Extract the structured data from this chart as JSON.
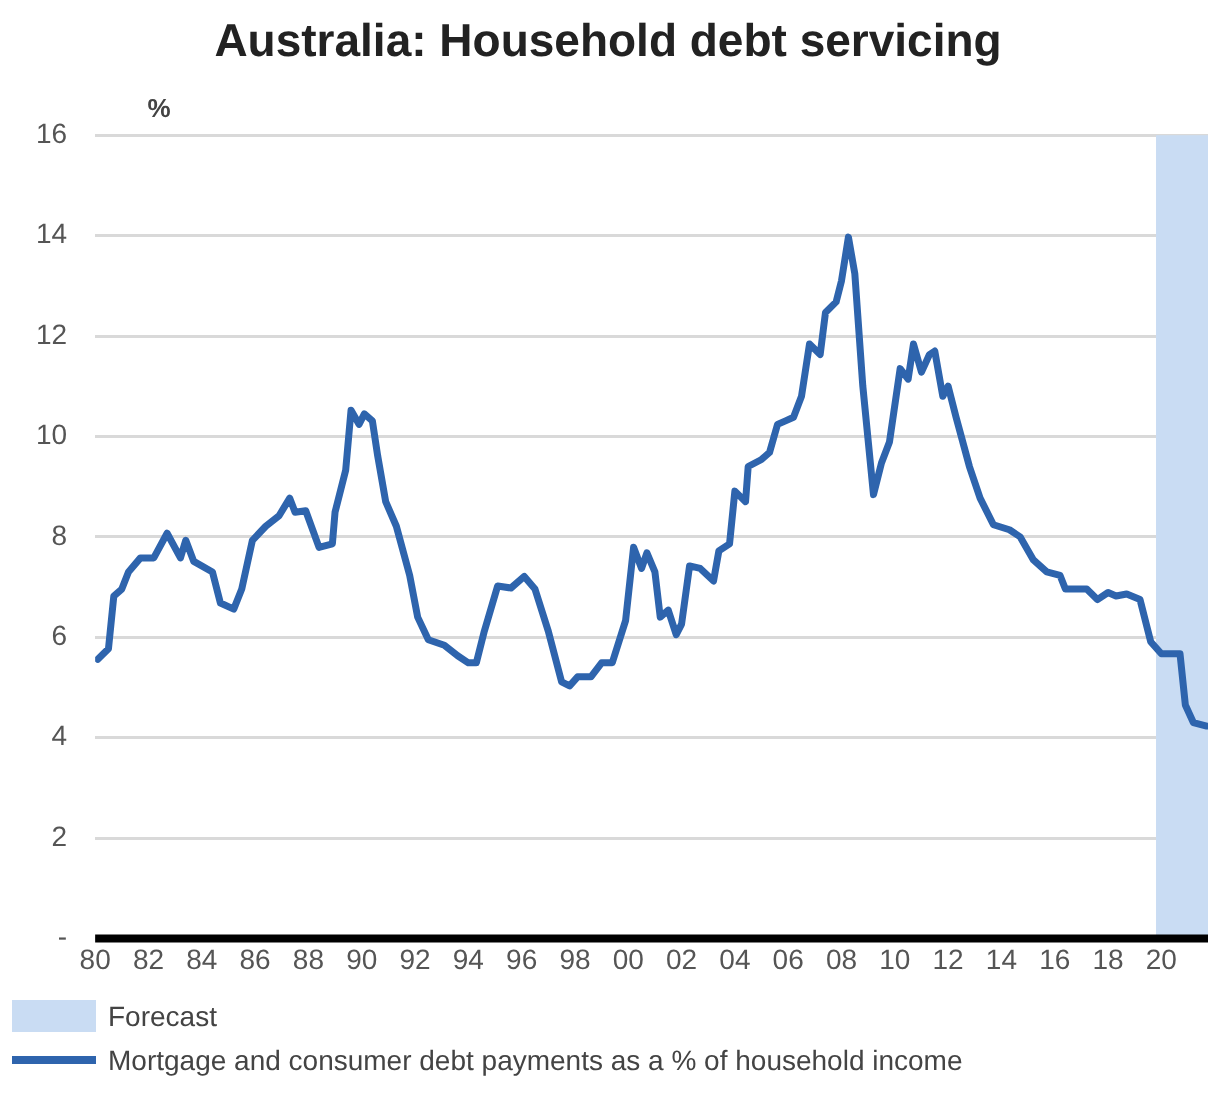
{
  "chart_data": {
    "type": "line",
    "title": "Australia: Household debt servicing",
    "ylabel": "%",
    "x": [
      1980.1,
      1980.5,
      1980.7,
      1981.0,
      1981.25,
      1981.7,
      1982.2,
      1982.7,
      1983.2,
      1983.4,
      1983.7,
      1984.4,
      1984.7,
      1985.2,
      1985.5,
      1985.9,
      1986.4,
      1986.9,
      1987.3,
      1987.5,
      1987.9,
      1988.4,
      1988.9,
      1989.0,
      1989.4,
      1989.6,
      1989.9,
      1990.1,
      1990.4,
      1990.6,
      1990.9,
      1991.3,
      1991.8,
      1992.1,
      1992.5,
      1993.1,
      1993.6,
      1994.0,
      1994.3,
      1994.6,
      1995.1,
      1995.6,
      1996.1,
      1996.5,
      1997.0,
      1997.5,
      1997.8,
      1998.1,
      1998.6,
      1999.0,
      1999.4,
      1999.9,
      2000.2,
      2000.5,
      2000.7,
      2001.0,
      2001.2,
      2001.5,
      2001.8,
      2002.0,
      2002.3,
      2002.7,
      2003.2,
      2003.4,
      2003.8,
      2004.0,
      2004.4,
      2004.5,
      2005.0,
      2005.3,
      2005.6,
      2005.9,
      2006.2,
      2006.5,
      2006.8,
      2007.2,
      2007.4,
      2007.8,
      2008.0,
      2008.26,
      2008.5,
      2008.8,
      2009.2,
      2009.5,
      2009.8,
      2010.2,
      2010.5,
      2010.7,
      2011.0,
      2011.3,
      2011.5,
      2011.8,
      2012.0,
      2012.3,
      2012.8,
      2013.2,
      2013.7,
      2014.3,
      2014.7,
      2015.2,
      2015.7,
      2016.2,
      2016.4,
      2017.2,
      2017.6,
      2018.0,
      2018.3,
      2018.7,
      2019.2,
      2019.6,
      2020.0,
      2020.7,
      2020.9,
      2021.2,
      2021.7
    ],
    "series": [
      {
        "name": "Mortgage and consumer debt payments as a % of household income",
        "color": "#2e64ad",
        "values": [
          5.56,
          5.77,
          6.82,
          6.96,
          7.3,
          7.58,
          7.58,
          8.07,
          7.58,
          7.93,
          7.51,
          7.3,
          6.68,
          6.56,
          6.96,
          7.93,
          8.21,
          8.42,
          8.77,
          8.49,
          8.52,
          7.79,
          7.86,
          8.49,
          9.33,
          10.52,
          10.24,
          10.45,
          10.31,
          9.61,
          8.7,
          8.21,
          7.23,
          6.4,
          5.95,
          5.84,
          5.63,
          5.49,
          5.49,
          6.12,
          7.02,
          6.98,
          7.21,
          6.96,
          6.12,
          5.11,
          5.03,
          5.21,
          5.21,
          5.49,
          5.49,
          6.33,
          7.79,
          7.37,
          7.68,
          7.3,
          6.4,
          6.54,
          6.05,
          6.26,
          7.42,
          7.37,
          7.12,
          7.72,
          7.86,
          8.91,
          8.7,
          9.4,
          9.54,
          9.68,
          10.24,
          10.31,
          10.38,
          10.8,
          11.84,
          11.63,
          12.47,
          12.68,
          13.1,
          13.97,
          13.24,
          11.0,
          8.84,
          9.47,
          9.89,
          11.35,
          11.14,
          11.84,
          11.28,
          11.63,
          11.7,
          10.8,
          11.0,
          10.38,
          9.4,
          8.77,
          8.24,
          8.14,
          8.0,
          7.54,
          7.3,
          7.23,
          6.96,
          6.96,
          6.75,
          6.89,
          6.82,
          6.86,
          6.75,
          5.91,
          5.67,
          5.67,
          4.65,
          4.3,
          4.23
        ]
      }
    ],
    "xlim": [
      1980,
      2021.75
    ],
    "xticks": [
      {
        "value": 1980,
        "label": "80"
      },
      {
        "value": 1982,
        "label": "82"
      },
      {
        "value": 1984,
        "label": "84"
      },
      {
        "value": 1986,
        "label": "86"
      },
      {
        "value": 1988,
        "label": "88"
      },
      {
        "value": 1990,
        "label": "90"
      },
      {
        "value": 1992,
        "label": "92"
      },
      {
        "value": 1994,
        "label": "94"
      },
      {
        "value": 1996,
        "label": "96"
      },
      {
        "value": 1998,
        "label": "98"
      },
      {
        "value": 2000,
        "label": "00"
      },
      {
        "value": 2002,
        "label": "02"
      },
      {
        "value": 2004,
        "label": "04"
      },
      {
        "value": 2006,
        "label": "06"
      },
      {
        "value": 2008,
        "label": "08"
      },
      {
        "value": 2010,
        "label": "10"
      },
      {
        "value": 2012,
        "label": "12"
      },
      {
        "value": 2014,
        "label": "14"
      },
      {
        "value": 2016,
        "label": "16"
      },
      {
        "value": 2018,
        "label": "18"
      },
      {
        "value": 2020,
        "label": "20"
      }
    ],
    "ylim": [
      0,
      16
    ],
    "yticks": [
      {
        "value": 0,
        "label": "-"
      },
      2,
      4,
      6,
      8,
      10,
      12,
      14,
      16
    ],
    "bands": [
      {
        "axis": "x",
        "from": 2019.8,
        "to": 2021.75,
        "label": "Forecast",
        "color": "#c9dcf3"
      }
    ],
    "grid": "y",
    "legend": "bottom",
    "marker": "none",
    "line_style": "solid"
  }
}
